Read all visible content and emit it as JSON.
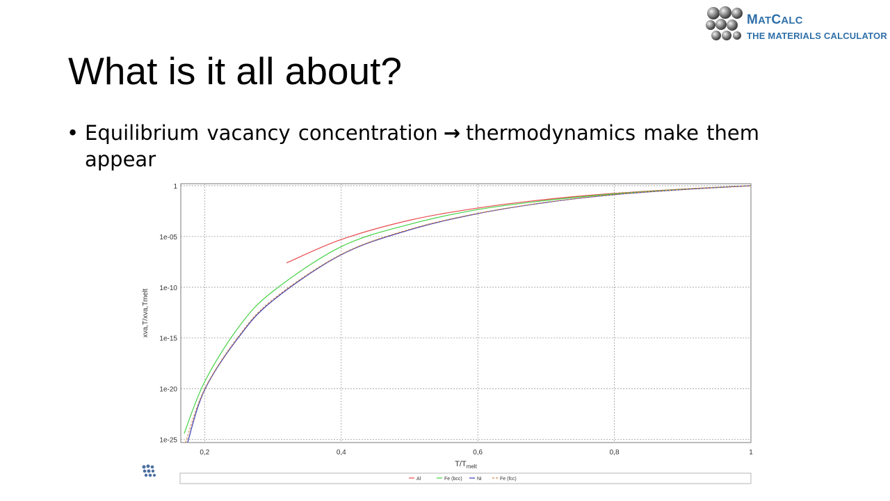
{
  "slide": {
    "title": "What is it all about?",
    "bullet": {
      "text_before": "Equilibrium  vacancy concentration",
      "arrow": "→",
      "text_after": "thermodynamics  make them appear"
    }
  },
  "logo": {
    "line1_first": "M",
    "line1_sc1": "AT",
    "line1_mid": "C",
    "line1_sc2": "ALC",
    "line2": "THE MATERIALS CALCULATOR"
  },
  "chart_data": {
    "type": "line",
    "title": "",
    "xlabel": "T/T",
    "xlabel_sub": "melt",
    "ylabel": "x",
    "ylabel_full": "xva,T/xva,Tmelt",
    "xlim": [
      0.165,
      1.0
    ],
    "ylim_log10": [
      -25.3,
      0.2
    ],
    "x_ticks": [
      0.2,
      0.4,
      0.6,
      0.8,
      1.0
    ],
    "x_tick_labels": [
      "0,2",
      "0,4",
      "0,6",
      "0,8",
      "1"
    ],
    "y_ticks_log10": [
      0,
      -5,
      -10,
      -15,
      -20,
      -25
    ],
    "y_tick_labels": [
      "1",
      "1e-05",
      "1e-10",
      "1e-15",
      "1e-20",
      "1e-25"
    ],
    "grid": true,
    "legend_position": "bottom",
    "series": [
      {
        "name": "Al",
        "color": "#e8474b",
        "dash": "",
        "x": [
          0.32,
          0.4,
          0.5,
          0.6,
          0.7,
          0.8,
          0.9,
          1.0
        ],
        "log10_y": [
          -7.6,
          -5.3,
          -3.4,
          -2.2,
          -1.35,
          -0.75,
          -0.33,
          0.0
        ]
      },
      {
        "name": "Fe (bcc)",
        "color": "#44d144",
        "dash": "",
        "x": [
          0.17,
          0.2,
          0.25,
          0.3,
          0.4,
          0.5,
          0.6,
          0.7,
          0.8,
          0.9,
          1.0
        ],
        "log10_y": [
          -24.4,
          -19.3,
          -13.9,
          -10.4,
          -6.0,
          -3.8,
          -2.35,
          -1.45,
          -0.8,
          -0.35,
          0.0
        ]
      },
      {
        "name": "Ni",
        "color": "#3b3bb0",
        "dash": "",
        "x": [
          0.175,
          0.2,
          0.25,
          0.3,
          0.4,
          0.5,
          0.6,
          0.7,
          0.8,
          0.9,
          1.0
        ],
        "log10_y": [
          -25.3,
          -20.1,
          -14.9,
          -11.3,
          -6.8,
          -4.35,
          -2.75,
          -1.65,
          -0.88,
          -0.38,
          0.0
        ]
      },
      {
        "name": "Fe (fcc)",
        "color": "#d4884a",
        "dash": "3,2",
        "x": [
          0.172,
          0.2,
          0.25,
          0.3,
          0.4,
          0.5,
          0.6,
          0.7,
          0.8,
          0.9,
          1.0
        ],
        "log10_y": [
          -25.3,
          -20.0,
          -14.8,
          -11.2,
          -6.75,
          -4.3,
          -2.72,
          -1.63,
          -0.87,
          -0.37,
          0.0
        ]
      }
    ]
  },
  "colors": {
    "grid": "#9a9a9a",
    "axis_text": "#333333",
    "logo_blue": "#2f6fa8"
  }
}
